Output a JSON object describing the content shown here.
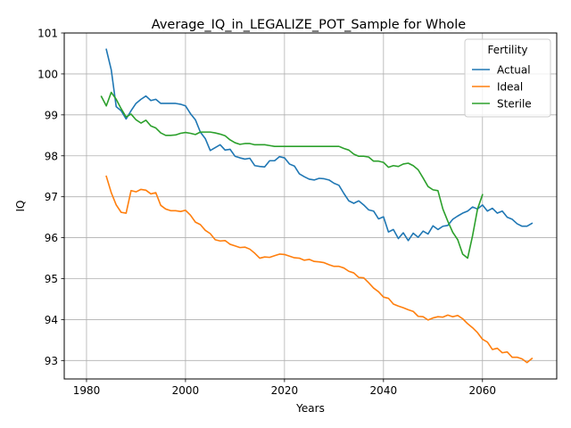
{
  "chart_data": {
    "type": "line",
    "title": "Average_IQ_in_LEGALIZE_POT_Sample for Whole",
    "xlabel": "Years",
    "ylabel": "IQ",
    "xlim": [
      1975.5,
      2075
    ],
    "ylim": [
      92.55,
      101
    ],
    "xticks": [
      1980,
      2000,
      2020,
      2040,
      2060
    ],
    "yticks": [
      93,
      94,
      95,
      96,
      97,
      98,
      99,
      100,
      101
    ],
    "grid": true,
    "legend": {
      "title": "Fertility",
      "placement": "top-right"
    },
    "series": [
      {
        "name": "Actual",
        "color": "#1f77b4",
        "x": [
          1984,
          1985,
          1986,
          1987,
          1988,
          1989,
          1990,
          1991,
          1992,
          1993,
          1994,
          1995,
          1996,
          1997,
          1998,
          1999,
          2000,
          2001,
          2002,
          2003,
          2004,
          2005,
          2006,
          2007,
          2008,
          2009,
          2010,
          2011,
          2012,
          2013,
          2014,
          2015,
          2016,
          2017,
          2018,
          2019,
          2020,
          2021,
          2022,
          2023,
          2024,
          2025,
          2026,
          2027,
          2028,
          2029,
          2030,
          2031,
          2032,
          2033,
          2034,
          2035,
          2036,
          2037,
          2038,
          2039,
          2040,
          2041,
          2042,
          2043,
          2044,
          2045,
          2046,
          2047,
          2048,
          2049,
          2050,
          2051,
          2052,
          2053,
          2054,
          2055,
          2056,
          2057,
          2058,
          2059,
          2060,
          2061,
          2062,
          2063,
          2064,
          2065,
          2066,
          2067,
          2068,
          2069,
          2070
        ],
        "y": [
          100.6,
          100.1,
          99.2,
          99.1,
          98.9,
          99.1,
          99.28,
          99.38,
          99.46,
          99.35,
          99.38,
          99.28,
          99.28,
          99.28,
          99.28,
          99.26,
          99.22,
          99.03,
          98.88,
          98.58,
          98.42,
          98.13,
          98.2,
          98.27,
          98.14,
          98.16,
          97.99,
          97.95,
          97.92,
          97.94,
          97.76,
          97.74,
          97.73,
          97.88,
          97.88,
          97.98,
          97.95,
          97.8,
          97.75,
          97.56,
          97.49,
          97.43,
          97.41,
          97.45,
          97.44,
          97.41,
          97.33,
          97.28,
          97.08,
          96.9,
          96.84,
          96.9,
          96.8,
          96.68,
          96.65,
          96.46,
          96.51,
          96.14,
          96.2,
          95.98,
          96.12,
          95.93,
          96.11,
          96.01,
          96.16,
          96.09,
          96.29,
          96.2,
          96.28,
          96.3,
          96.45,
          96.53,
          96.6,
          96.65,
          96.75,
          96.7,
          96.8,
          96.65,
          96.72,
          96.6,
          96.65,
          96.5,
          96.45,
          96.34,
          96.28,
          96.28,
          96.35
        ]
      },
      {
        "name": "Ideal",
        "color": "#ff7f0e",
        "x": [
          1984,
          1985,
          1986,
          1987,
          1988,
          1989,
          1990,
          1991,
          1992,
          1993,
          1994,
          1995,
          1996,
          1997,
          1998,
          1999,
          2000,
          2001,
          2002,
          2003,
          2004,
          2005,
          2006,
          2007,
          2008,
          2009,
          2010,
          2011,
          2012,
          2013,
          2014,
          2015,
          2016,
          2017,
          2018,
          2019,
          2020,
          2021,
          2022,
          2023,
          2024,
          2025,
          2026,
          2027,
          2028,
          2029,
          2030,
          2031,
          2032,
          2033,
          2034,
          2035,
          2036,
          2037,
          2038,
          2039,
          2040,
          2041,
          2042,
          2043,
          2044,
          2045,
          2046,
          2047,
          2048,
          2049,
          2050,
          2051,
          2052,
          2053,
          2054,
          2055,
          2056,
          2057,
          2058,
          2059,
          2060,
          2061,
          2062,
          2063,
          2064,
          2065,
          2066,
          2067,
          2068,
          2069,
          2070
        ],
        "y": [
          97.5,
          97.1,
          96.8,
          96.62,
          96.6,
          97.15,
          97.12,
          97.18,
          97.16,
          97.07,
          97.1,
          96.79,
          96.7,
          96.66,
          96.66,
          96.64,
          96.67,
          96.55,
          96.38,
          96.32,
          96.18,
          96.1,
          95.95,
          95.92,
          95.93,
          95.84,
          95.8,
          95.76,
          95.77,
          95.72,
          95.62,
          95.5,
          95.53,
          95.52,
          95.56,
          95.6,
          95.59,
          95.55,
          95.51,
          95.5,
          95.45,
          95.47,
          95.42,
          95.41,
          95.39,
          95.34,
          95.3,
          95.3,
          95.26,
          95.18,
          95.14,
          95.03,
          95.02,
          94.9,
          94.77,
          94.68,
          94.55,
          94.52,
          94.38,
          94.33,
          94.29,
          94.24,
          94.2,
          94.08,
          94.07,
          93.99,
          94.04,
          94.07,
          94.06,
          94.11,
          94.07,
          94.1,
          94.02,
          93.9,
          93.8,
          93.68,
          93.52,
          93.45,
          93.27,
          93.3,
          93.19,
          93.21,
          93.08,
          93.08,
          93.04,
          92.95,
          93.05
        ]
      },
      {
        "name": "Sterile",
        "color": "#2ca02c",
        "x": [
          1983,
          1984,
          1985,
          1986,
          1987,
          1988,
          1989,
          1990,
          1991,
          1992,
          1993,
          1994,
          1995,
          1996,
          1997,
          1998,
          1999,
          2000,
          2001,
          2002,
          2003,
          2004,
          2005,
          2006,
          2007,
          2008,
          2009,
          2010,
          2011,
          2012,
          2013,
          2014,
          2015,
          2016,
          2017,
          2018,
          2019,
          2020,
          2021,
          2022,
          2023,
          2024,
          2025,
          2026,
          2027,
          2028,
          2029,
          2030,
          2031,
          2032,
          2033,
          2034,
          2035,
          2036,
          2037,
          2038,
          2039,
          2040,
          2041,
          2042,
          2043,
          2044,
          2045,
          2046,
          2047,
          2048,
          2049,
          2050,
          2051,
          2052,
          2053,
          2054,
          2055,
          2056,
          2057,
          2058,
          2059,
          2060
        ],
        "y": [
          99.45,
          99.22,
          99.55,
          99.38,
          99.15,
          98.95,
          99.02,
          98.88,
          98.8,
          98.87,
          98.73,
          98.68,
          98.56,
          98.5,
          98.5,
          98.51,
          98.55,
          98.57,
          98.55,
          98.52,
          98.58,
          98.58,
          98.58,
          98.56,
          98.53,
          98.49,
          98.39,
          98.32,
          98.28,
          98.3,
          98.3,
          98.27,
          98.27,
          98.27,
          98.25,
          98.23,
          98.23,
          98.23,
          98.23,
          98.23,
          98.23,
          98.23,
          98.23,
          98.23,
          98.23,
          98.23,
          98.23,
          98.23,
          98.23,
          98.18,
          98.14,
          98.04,
          97.99,
          97.99,
          97.97,
          97.87,
          97.87,
          97.84,
          97.72,
          97.76,
          97.74,
          97.8,
          97.82,
          97.76,
          97.66,
          97.46,
          97.25,
          97.17,
          97.15,
          96.7,
          96.4,
          96.13,
          95.95,
          95.6,
          95.5,
          96.05,
          96.7,
          97.05
        ]
      }
    ]
  }
}
